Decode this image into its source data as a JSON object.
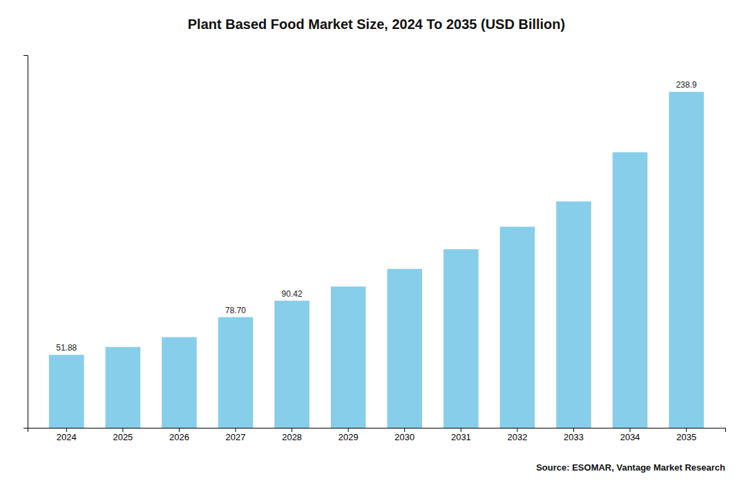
{
  "chart_data": {
    "type": "bar",
    "title": "Plant Based Food Market Size, 2024 To 2035 (USD Billion)",
    "categories": [
      "2024",
      "2025",
      "2026",
      "2027",
      "2028",
      "2029",
      "2030",
      "2031",
      "2032",
      "2033",
      "2034",
      "2035"
    ],
    "values": [
      51.88,
      57.5,
      64.5,
      78.7,
      90.42,
      100.5,
      113.0,
      127.0,
      143.0,
      161.0,
      196.0,
      238.9
    ],
    "value_labels": [
      "51.88",
      null,
      null,
      "78.70",
      "90.42",
      null,
      null,
      null,
      null,
      null,
      null,
      "238.9"
    ],
    "data_labels": true,
    "color": "#87CEEB",
    "ylim": [
      0,
      265
    ],
    "yticks": [],
    "grid": false,
    "tick_labels": "x",
    "annotation": "Source: ESOMAR, Vantage Market Research"
  }
}
